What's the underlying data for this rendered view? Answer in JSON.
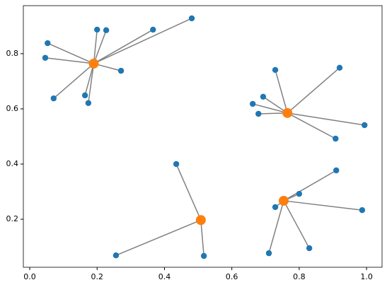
{
  "chart_data": {
    "type": "scatter",
    "xlim": [
      -0.019,
      1.046
    ],
    "ylim": [
      0.026,
      0.974
    ],
    "xticks": [
      {
        "value": 0.0,
        "label": "0.0"
      },
      0.2,
      0.4,
      0.6,
      0.8,
      {
        "value": 1.0,
        "label": "1.0"
      }
    ],
    "yticks": [
      0.2,
      0.4,
      0.6,
      0.8
    ],
    "grid": false,
    "link_color": "#808080",
    "points": {
      "color": "#1f77b4",
      "x": [
        0.053,
        0.046,
        0.071,
        0.164,
        0.174,
        0.2,
        0.227,
        0.271,
        0.366,
        0.481,
        0.729,
        0.92,
        0.693,
        0.662,
        0.679,
        0.908,
        0.994,
        0.435,
        0.256,
        0.517,
        0.91,
        0.8,
        0.729,
        0.987,
        0.71,
        0.83
      ],
      "y": [
        0.838,
        0.785,
        0.638,
        0.649,
        0.621,
        0.887,
        0.885,
        0.738,
        0.887,
        0.928,
        0.741,
        0.749,
        0.644,
        0.618,
        0.582,
        0.492,
        0.541,
        0.4,
        0.069,
        0.067,
        0.377,
        0.292,
        0.244,
        0.233,
        0.077,
        0.095
      ],
      "cluster": [
        0,
        0,
        0,
        0,
        0,
        0,
        0,
        0,
        0,
        0,
        1,
        1,
        1,
        1,
        1,
        1,
        1,
        2,
        2,
        2,
        3,
        3,
        3,
        3,
        3,
        3
      ]
    },
    "centers": {
      "color": "#ff7f0e",
      "x": [
        0.19,
        0.765,
        0.508,
        0.754
      ],
      "y": [
        0.764,
        0.585,
        0.197,
        0.267
      ]
    }
  }
}
